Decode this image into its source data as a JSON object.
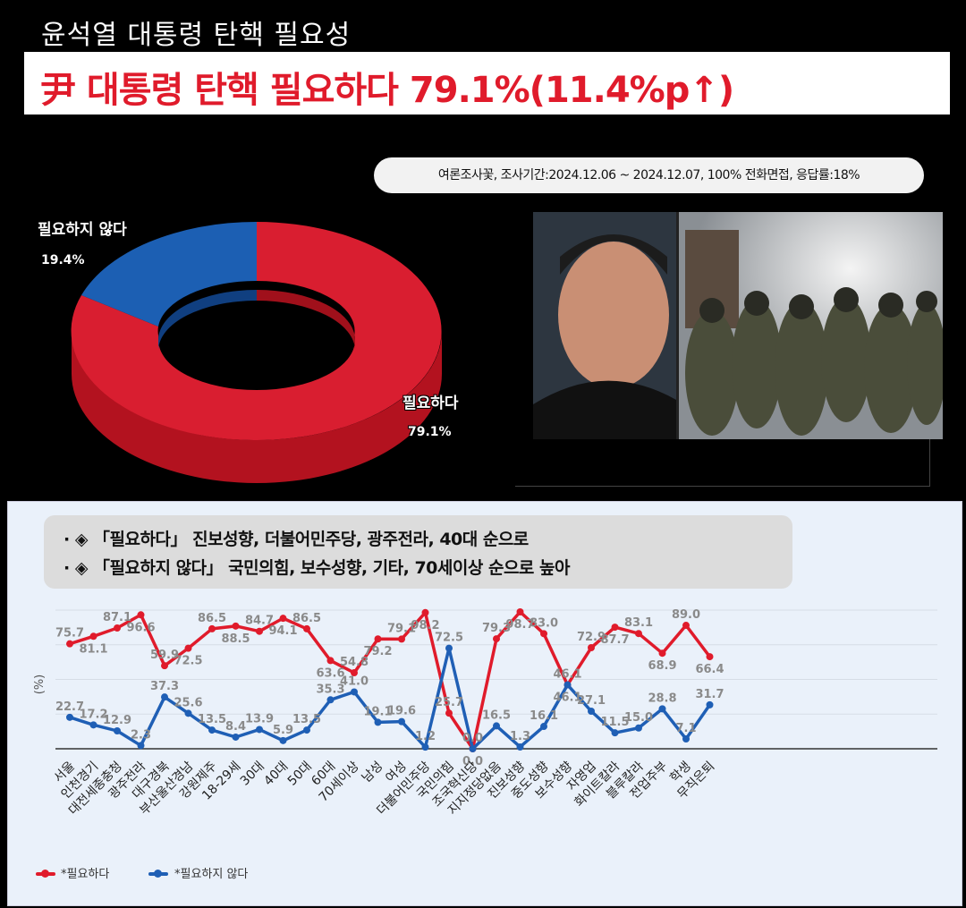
{
  "header": {
    "title": "윤석열 대통령 탄핵 필요성",
    "headline": "尹 대통령 탄핵 필요하다 79.1%(11.4%p↑)"
  },
  "survey": {
    "info": "여론조사꽃, 조사기간:2024.12.06 ~ 2024.12.07, 100% 전화면접, 응답률:18%"
  },
  "summary": {
    "line1": "· ◈ 「필요하다」 진보성향, 더불어민주당, 광주전라, 40대 순으로",
    "line2": "· ◈ 「필요하지 않다」 국민의힘, 보수성향, 기타, 70세이상 순으로 높아"
  },
  "colors": {
    "red": "#e01b2b",
    "blue": "#1f5fb5",
    "panel_bg": "#eaf1fa"
  },
  "chart_data": [
    {
      "type": "pie",
      "slices": [
        {
          "label": "필요하다",
          "value": 79.1,
          "display": "79.1%"
        },
        {
          "label": "필요하지 않다",
          "value": 19.4,
          "display": "19.4%"
        }
      ]
    },
    {
      "type": "line",
      "ylabel": "(%)",
      "ylim": [
        0,
        100
      ],
      "categories": [
        "서울",
        "인천경기",
        "대전세종충청",
        "광주전라",
        "대구경북",
        "부산울산경남",
        "강원제주",
        "18-29세",
        "30대",
        "40대",
        "50대",
        "60대",
        "70세이상",
        "남성",
        "여성",
        "더불어민주당",
        "국민의힘",
        "조국혁신당",
        "지지정당없음",
        "진보성향",
        "중도성향",
        "보수성향",
        "자영업",
        "화이트칼라",
        "블루칼라",
        "전업주부",
        "학생",
        "무직은퇴"
      ],
      "series": [
        {
          "name": "*필요하다",
          "values": [
            75.7,
            81.1,
            87.1,
            96.6,
            59.9,
            72.5,
            86.5,
            88.5,
            84.7,
            94.1,
            86.5,
            63.6,
            54.8,
            79.2,
            79.1,
            98.2,
            25.7,
            0.0,
            79.3,
            98.7,
            83.0,
            46.1,
            72.9,
            87.7,
            83.1,
            68.9,
            89.0,
            66.4
          ]
        },
        {
          "name": "*필요하지 않다",
          "values": [
            22.7,
            17.2,
            12.9,
            2.3,
            37.3,
            25.6,
            13.5,
            8.4,
            13.9,
            5.9,
            13.5,
            35.3,
            41.0,
            19.1,
            19.6,
            1.2,
            72.5,
            0.0,
            16.5,
            1.3,
            16.1,
            46.1,
            27.1,
            11.5,
            15.0,
            28.8,
            7.1,
            31.7
          ]
        }
      ]
    }
  ]
}
